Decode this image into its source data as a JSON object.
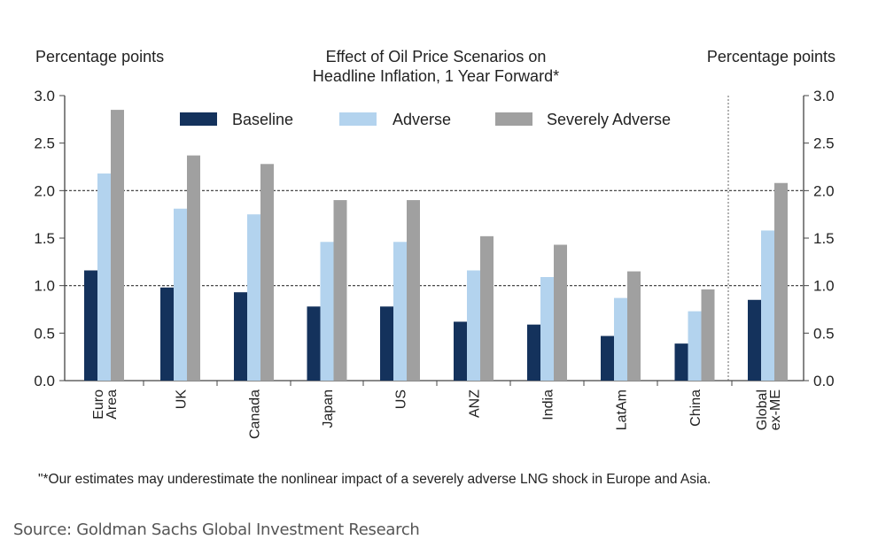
{
  "chart_data": {
    "type": "bar",
    "title": "Effect of Oil Price Scenarios on Headline Inflation, 1 Year Forward*",
    "title_lines": [
      "Effect of Oil Price Scenarios on",
      "Headline Inflation, 1 Year Forward*"
    ],
    "ylabel_left": "Percentage points",
    "ylabel_right": "Percentage points",
    "ylim": [
      0,
      3.0
    ],
    "yticks": [
      "0.0",
      "0.5",
      "1.0",
      "1.5",
      "2.0",
      "2.5",
      "3.0"
    ],
    "reference_lines": [
      1.0,
      2.0
    ],
    "legend_position": "top",
    "categories": [
      "Euro Area",
      "UK",
      "Canada",
      "Japan",
      "US",
      "ANZ",
      "India",
      "LatAm",
      "China",
      "Global ex-ME"
    ],
    "category_lines": [
      [
        "Euro",
        "Area"
      ],
      [
        "UK"
      ],
      [
        "Canada"
      ],
      [
        "Japan"
      ],
      [
        "US"
      ],
      [
        "ANZ"
      ],
      [
        "India"
      ],
      [
        "LatAm"
      ],
      [
        "China"
      ],
      [
        "Global",
        "ex-ME"
      ]
    ],
    "series": [
      {
        "name": "Baseline",
        "color": "#14325c",
        "values": [
          1.16,
          0.98,
          0.93,
          0.78,
          0.78,
          0.62,
          0.59,
          0.47,
          0.39,
          0.85
        ]
      },
      {
        "name": "Adverse",
        "color": "#b3d3ee",
        "values": [
          2.18,
          1.81,
          1.75,
          1.46,
          1.46,
          1.16,
          1.09,
          0.87,
          0.73,
          1.58
        ]
      },
      {
        "name": "Severely Adverse",
        "color": "#a0a0a0",
        "values": [
          2.85,
          2.37,
          2.28,
          1.9,
          1.9,
          1.52,
          1.43,
          1.15,
          0.96,
          2.08
        ]
      }
    ],
    "footnote": "\"*Our estimates may underestimate the nonlinear impact of a severely adverse LNG shock in Europe and Asia."
  },
  "source": "Source: Goldman Sachs Global Investment Research"
}
